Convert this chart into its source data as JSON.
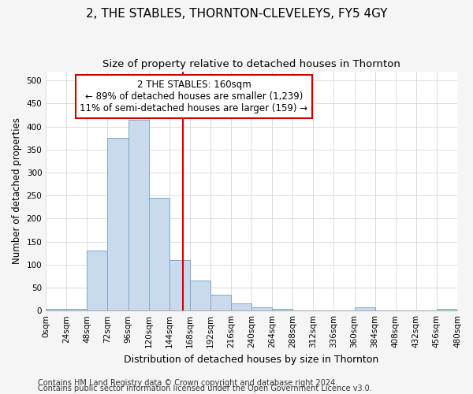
{
  "title": "2, THE STABLES, THORNTON-CLEVELEYS, FY5 4GY",
  "subtitle": "Size of property relative to detached houses in Thornton",
  "xlabel": "Distribution of detached houses by size in Thornton",
  "ylabel": "Number of detached properties",
  "footnote1": "Contains HM Land Registry data © Crown copyright and database right 2024.",
  "footnote2": "Contains public sector information licensed under the Open Government Licence v3.0.",
  "bin_edges": [
    0,
    24,
    48,
    72,
    96,
    120,
    144,
    168,
    192,
    216,
    240,
    264,
    288,
    312,
    336,
    360,
    384,
    408,
    432,
    456,
    480
  ],
  "counts": [
    3,
    4,
    130,
    375,
    415,
    245,
    110,
    65,
    35,
    15,
    7,
    3,
    0,
    0,
    0,
    7,
    0,
    0,
    0,
    3
  ],
  "bar_color": "#c8daec",
  "bar_edge_color": "#7aaac8",
  "vline_x": 160,
  "vline_color": "#cc0000",
  "annotation_line1": "2 THE STABLES: 160sqm",
  "annotation_line2": "← 89% of detached houses are smaller (1,239)",
  "annotation_line3": "11% of semi-detached houses are larger (159) →",
  "annotation_box_color": "#ffffff",
  "annotation_box_edge_color": "#cc0000",
  "ylim": [
    0,
    520
  ],
  "tick_labels": [
    "0sqm",
    "24sqm",
    "48sqm",
    "72sqm",
    "96sqm",
    "120sqm",
    "144sqm",
    "168sqm",
    "192sqm",
    "216sqm",
    "240sqm",
    "264sqm",
    "288sqm",
    "312sqm",
    "336sqm",
    "360sqm",
    "384sqm",
    "408sqm",
    "432sqm",
    "456sqm",
    "480sqm"
  ],
  "title_fontsize": 11,
  "subtitle_fontsize": 9.5,
  "xlabel_fontsize": 9,
  "ylabel_fontsize": 8.5,
  "tick_fontsize": 7.5,
  "annotation_fontsize": 8.5,
  "footnote_fontsize": 7,
  "background_color": "#f5f5f5",
  "plot_bg_color": "#ffffff",
  "grid_color": "#d0d8e0"
}
